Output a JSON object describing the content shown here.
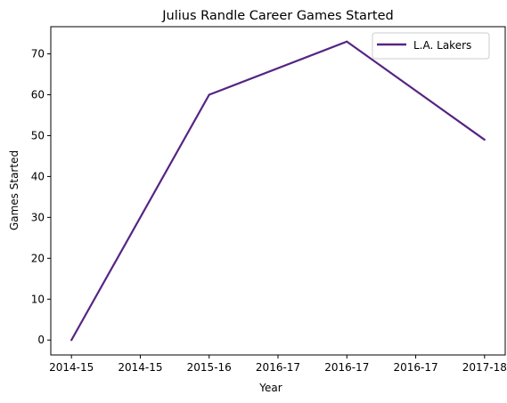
{
  "chart_data": {
    "type": "line",
    "title": "Julius Randle Career Games Started",
    "xlabel": "Year",
    "ylabel": "Games Started",
    "x_tick_labels": [
      "2014-15",
      "2014-15",
      "2015-16",
      "2016-17",
      "2016-17",
      "2016-17",
      "2017-18"
    ],
    "y_ticks": [
      0,
      10,
      20,
      30,
      40,
      50,
      60,
      70
    ],
    "ylim": [
      -3.65,
      76.65
    ],
    "grid": false,
    "legend_position": "top-right",
    "series": [
      {
        "name": "L.A. Lakers",
        "color": "#552583",
        "points": [
          {
            "x": "2014-15",
            "y": 0
          },
          {
            "x": "2015-16",
            "y": 60
          },
          {
            "x": "2016-17",
            "y": 73
          },
          {
            "x": "2017-18",
            "y": 49
          }
        ]
      }
    ]
  }
}
